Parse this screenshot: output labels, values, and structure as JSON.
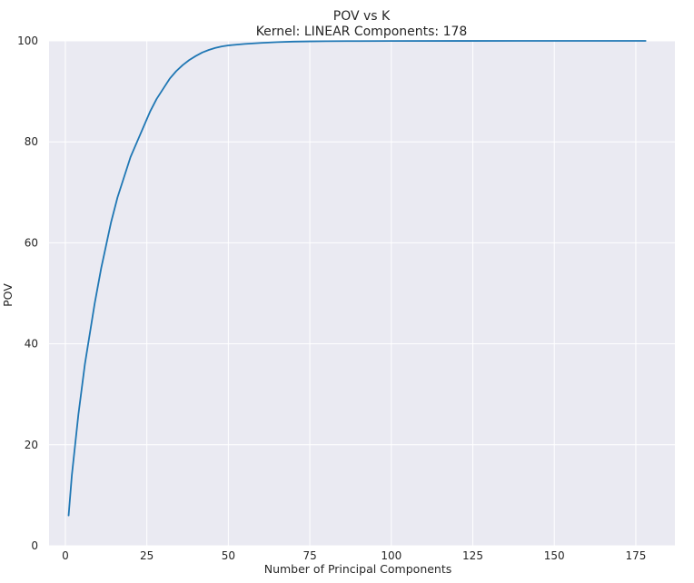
{
  "chart_data": {
    "type": "line",
    "title": "POV vs K",
    "subtitle": "Kernel: LINEAR Components: 178",
    "xlabel": "Number of Principal Components",
    "ylabel": "POV",
    "xlim": [
      -5,
      187
    ],
    "ylim": [
      0,
      100
    ],
    "xticks": [
      0,
      25,
      50,
      75,
      100,
      125,
      150,
      175
    ],
    "yticks": [
      0,
      20,
      40,
      60,
      80,
      100
    ],
    "grid": true,
    "colors": {
      "line": "#1f77b4",
      "background": "#eaeaf2",
      "grid": "#ffffff"
    },
    "series": [
      {
        "x": [
          1,
          2,
          3,
          4,
          5,
          6,
          7,
          8,
          9,
          10,
          11,
          12,
          13,
          14,
          15,
          16,
          17,
          18,
          19,
          20,
          22,
          24,
          26,
          28,
          30,
          32,
          34,
          36,
          38,
          40,
          42,
          44,
          46,
          48,
          50,
          55,
          60,
          65,
          70,
          75,
          80,
          90,
          100,
          120,
          140,
          160,
          178
        ],
        "y": [
          6,
          14,
          20,
          26,
          31,
          36,
          40,
          44,
          48,
          51.5,
          55,
          58,
          61,
          64,
          66.5,
          69,
          71,
          73,
          75,
          77,
          80,
          83,
          86,
          88.5,
          90.5,
          92.5,
          94,
          95.2,
          96.2,
          97,
          97.7,
          98.2,
          98.6,
          98.9,
          99.1,
          99.4,
          99.6,
          99.75,
          99.85,
          99.9,
          99.93,
          99.96,
          99.98,
          99.99,
          100,
          100,
          100
        ]
      }
    ]
  }
}
